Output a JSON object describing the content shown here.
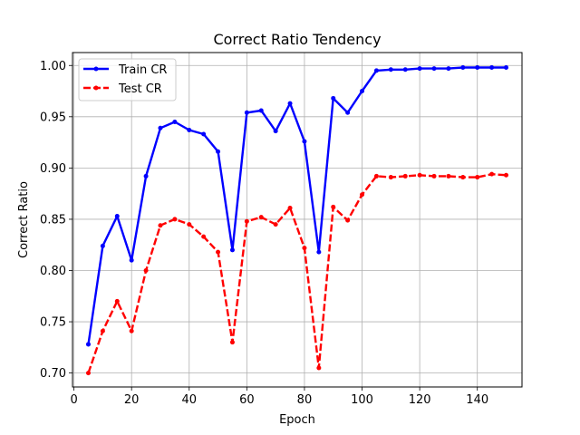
{
  "chart_data": {
    "type": "line",
    "title": "Correct Ratio Tendency",
    "xlabel": "Epoch",
    "ylabel": "Correct Ratio",
    "xlim": [
      -0.5,
      155.5
    ],
    "ylim": [
      0.6864,
      1.0126
    ],
    "xticks": [
      0,
      20,
      40,
      60,
      80,
      100,
      120,
      140
    ],
    "yticks": [
      0.7,
      0.75,
      0.8,
      0.85,
      0.9,
      0.95,
      1.0
    ],
    "ytick_labels": [
      "0.70",
      "0.75",
      "0.80",
      "0.85",
      "0.90",
      "0.95",
      "1.00"
    ],
    "grid": true,
    "legend_position": "top-left",
    "x": [
      5,
      10,
      15,
      20,
      25,
      30,
      35,
      40,
      45,
      50,
      55,
      60,
      65,
      70,
      75,
      80,
      85,
      90,
      95,
      100,
      105,
      110,
      115,
      120,
      125,
      130,
      135,
      140,
      145,
      150
    ],
    "series": [
      {
        "name": "Train CR",
        "color": "#0000ff",
        "style": "solid",
        "values": [
          0.728,
          0.824,
          0.853,
          0.81,
          0.892,
          0.939,
          0.945,
          0.937,
          0.933,
          0.916,
          0.82,
          0.954,
          0.956,
          0.936,
          0.963,
          0.926,
          0.818,
          0.968,
          0.954,
          0.975,
          0.995,
          0.996,
          0.996,
          0.997,
          0.997,
          0.997,
          0.998,
          0.998,
          0.998,
          0.998
        ]
      },
      {
        "name": "Test CR",
        "color": "#ff0000",
        "style": "dashed",
        "values": [
          0.7,
          0.741,
          0.77,
          0.741,
          0.8,
          0.844,
          0.85,
          0.845,
          0.833,
          0.818,
          0.73,
          0.848,
          0.852,
          0.845,
          0.861,
          0.822,
          0.705,
          0.862,
          0.849,
          0.874,
          0.892,
          0.891,
          0.892,
          0.893,
          0.892,
          0.892,
          0.891,
          0.891,
          0.894,
          0.893
        ]
      }
    ]
  }
}
